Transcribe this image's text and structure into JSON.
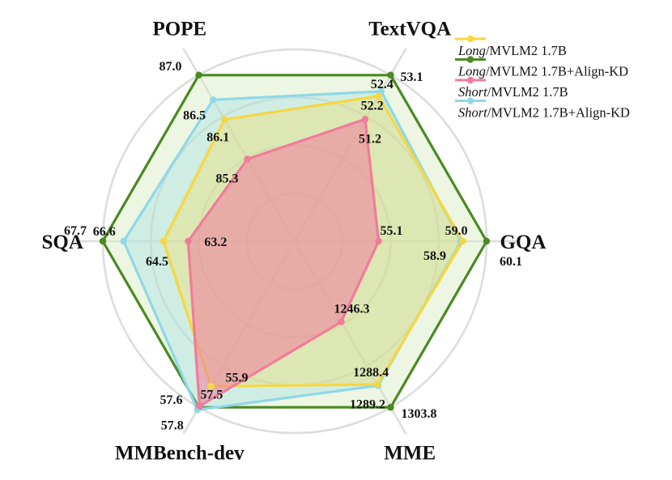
{
  "chart_data": {
    "type": "radar",
    "axes": [
      "TextVQA",
      "GQA",
      "MME",
      "MMBench-dev",
      "SQA",
      "POPE"
    ],
    "series": [
      {
        "prefix": "Long",
        "suffix": "/MVLM2 1.7B",
        "color": "#f5d742",
        "fill": "#f5dd5a",
        "fill_opacity": 0.35,
        "values": [
          52.2,
          59.0,
          1288.4,
          55.9,
          64.5,
          86.1
        ],
        "labels": [
          "52.2",
          "59.0",
          "1288.4",
          "55.9",
          "64.5",
          "86.1"
        ]
      },
      {
        "prefix": "Long",
        "suffix": "/MVLM2 1.7B+Align-KD",
        "color": "#4a8a22",
        "fill": "#d7ebbf",
        "fill_opacity": 0.45,
        "values": [
          53.1,
          60.1,
          1303.8,
          57.6,
          67.7,
          87.0
        ],
        "labels": [
          "53.1",
          "60.1",
          "1303.8",
          "57.6",
          "67.7",
          "87.0"
        ]
      },
      {
        "prefix": "Short",
        "suffix": "/MVLM2 1.7B",
        "color": "#f07c9a",
        "fill": "#f07c9a",
        "fill_opacity": 0.55,
        "values": [
          51.2,
          55.1,
          1246.3,
          57.5,
          63.2,
          85.3
        ],
        "labels": [
          "51.2",
          "55.1",
          "1246.3",
          "57.5",
          "63.2",
          "85.3"
        ]
      },
      {
        "prefix": "Short",
        "suffix": "/MVLM2 1.7B+Align-KD",
        "color": "#8fd8e8",
        "fill": "#8fd8e8",
        "fill_opacity": 0.3,
        "values": [
          52.4,
          58.9,
          1289.2,
          57.8,
          66.6,
          86.5
        ],
        "labels": [
          "52.4",
          "58.9",
          "1289.2",
          "57.8",
          "66.6",
          "86.5"
        ]
      }
    ],
    "axis_ranges": {
      "TextVQA": [
        45.95,
        53.1
      ],
      "GQA": [
        51.22,
        60.1
      ],
      "MME": [
        1192.1,
        1303.8
      ],
      "MMBench-dev": [
        44.17,
        57.6
      ],
      "SQA": [
        57.58,
        67.7
      ],
      "POPE": [
        83.64,
        87.0
      ]
    },
    "legend_position": "top-right",
    "grid": "concentric circles",
    "title": ""
  }
}
